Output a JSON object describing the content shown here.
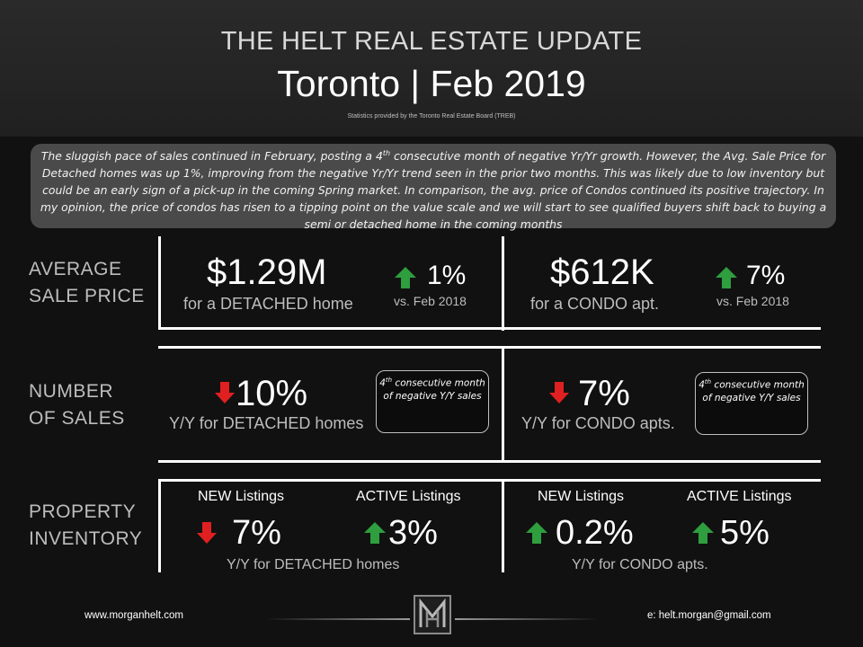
{
  "header": {
    "title": "THE HELT REAL ESTATE UPDATE",
    "subtitle": "Toronto | Feb 2019",
    "source": "Statistics provided by the Toronto Real Estate Board (TREB)"
  },
  "summary": {
    "part1": "The sluggish pace of sales continued in February, posting a 4",
    "sup": "th",
    "part2": " consecutive month of negative Yr/Yr growth. However, the Avg. Sale Price for Detached homes was up 1%, improving from the negative Yr/Yr trend seen in the prior two months. This was likely due to low inventory but could be an early sign of a pick-up in the coming Spring market. In comparison, the avg. price of Condos continued its positive trajectory. In my opinion, the price of condos has risen to a tipping point on the value scale and we will start to see qualified buyers shift back to buying a semi or detached home in the coming months"
  },
  "sections": {
    "avg_price": {
      "label_line1": "AVERAGE",
      "label_line2": "SALE PRICE",
      "detached": {
        "value": "$1.29M",
        "caption": "for a DETACHED home",
        "change": "1%",
        "direction": "up",
        "compare": "vs. Feb 2018"
      },
      "condo": {
        "value": "$612K",
        "caption": "for a CONDO apt.",
        "change": "7%",
        "direction": "up",
        "compare": "vs. Feb 2018"
      }
    },
    "num_sales": {
      "label_line1": "NUMBER",
      "label_line2": "OF SALES",
      "detached": {
        "value": "10%",
        "direction": "down",
        "caption": "Y/Y for DETACHED homes"
      },
      "condo": {
        "value": "7%",
        "direction": "down",
        "caption": "Y/Y for CONDO apts."
      },
      "note": {
        "num": "4",
        "sup": "th",
        "rest": " consecutive month of negative Y/Y sales"
      }
    },
    "inventory": {
      "label_line1": "PROPERTY",
      "label_line2": "INVENTORY",
      "new_label": "NEW Listings",
      "active_label": "ACTIVE Listings",
      "detached": {
        "new": "7%",
        "new_direction": "down",
        "active": "3%",
        "active_direction": "up",
        "caption": "Y/Y for DETACHED homes"
      },
      "condo": {
        "new": "0.2%",
        "new_direction": "up",
        "active": "5%",
        "active_direction": "up",
        "caption": "Y/Y for CONDO apts."
      }
    }
  },
  "footer": {
    "website": "www.morganhelt.com",
    "email": "e: helt.morgan@gmail.com",
    "logo_letter": "M"
  },
  "colors": {
    "up": "#2e9e3e",
    "down": "#e02020",
    "label": "#bdbdbd",
    "background": "#111111"
  }
}
